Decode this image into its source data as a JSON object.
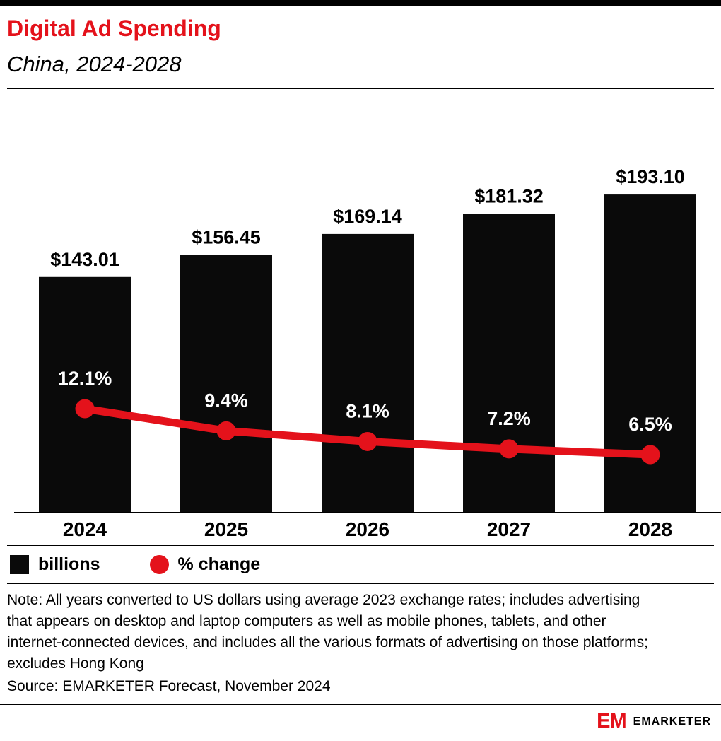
{
  "header": {
    "title": "Digital Ad Spending",
    "subtitle": "China, 2024-2028"
  },
  "chart_data": {
    "type": "bar",
    "categories": [
      "2024",
      "2025",
      "2026",
      "2027",
      "2028"
    ],
    "series": [
      {
        "name": "billions",
        "type": "bar",
        "values": [
          143.01,
          156.45,
          169.14,
          181.32,
          193.1
        ],
        "labels": [
          "$143.01",
          "$156.45",
          "$169.14",
          "$181.32",
          "$193.10"
        ],
        "color": "#0a0a0a"
      },
      {
        "name": "% change",
        "type": "line",
        "values": [
          12.1,
          9.4,
          8.1,
          7.2,
          6.5
        ],
        "labels": [
          "12.1%",
          "9.4%",
          "8.1%",
          "7.2%",
          "6.5%"
        ],
        "color": "#e4121b"
      }
    ],
    "title": "Digital Ad Spending",
    "subtitle": "China, 2024-2028",
    "xlabel": "",
    "ylabel": "",
    "grid": false,
    "legend_position": "bottom"
  },
  "legend": {
    "items": [
      {
        "label": "billions",
        "shape": "square",
        "color": "#0a0a0a"
      },
      {
        "label": "% change",
        "shape": "circle",
        "color": "#e4121b"
      }
    ]
  },
  "note": "Note: All years converted to US dollars using average 2023 exchange rates; includes advertising that appears on desktop and laptop computers as well as mobile phones, tablets, and other internet-connected devices, and includes all the various formats of advertising on those platforms; excludes Hong Kong",
  "source": "Source: EMARKETER Forecast, November 2024",
  "footer": {
    "logo": "EM",
    "brand": "EMARKETER"
  },
  "colors": {
    "accent": "#e4121b",
    "bar": "#0a0a0a"
  }
}
